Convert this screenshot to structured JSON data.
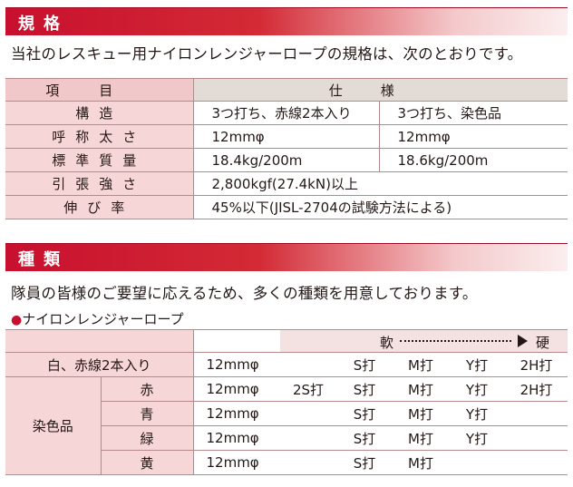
{
  "spec_section": {
    "title": "規格",
    "intro": "当社のレスキュー用ナイロンレンジャーロープの規格は、次のとおりです。",
    "header": {
      "item": "項目",
      "spec": "仕様"
    },
    "rows": [
      {
        "label": "構造",
        "v1": "3つ打ち、赤線2本入り",
        "v2": "3つ打ち、染色品"
      },
      {
        "label": "呼称太さ",
        "v1": "12mmφ",
        "v2": "12mmφ"
      },
      {
        "label": "標準質量",
        "v1": "18.4kg/200m",
        "v2": "18.6kg/200m"
      }
    ],
    "wide_rows": [
      {
        "label": "引張強さ",
        "value": "2,800kgf(27.4kN)以上"
      },
      {
        "label": "伸び率",
        "value": "45%以下(JISL-2704の試験方法による)"
      }
    ]
  },
  "types_section": {
    "title": "種類",
    "intro": "隊員の皆様のご要望に応えるため、多くの種類を用意しております。",
    "bullet_dot": "●",
    "product": "ナイロンレンジャーロープ",
    "scale_soft": "軟",
    "scale_hard": "硬",
    "white_row": {
      "label": "白、赤線2本入り",
      "size": "12mmφ",
      "grades": [
        "",
        "S打",
        "M打",
        "Y打",
        "2H打"
      ]
    },
    "dyed_label": "染色品",
    "dyed_rows": [
      {
        "color": "赤",
        "size": "12mmφ",
        "grades": [
          "2S打",
          "S打",
          "M打",
          "Y打",
          "2H打"
        ]
      },
      {
        "color": "青",
        "size": "12mmφ",
        "grades": [
          "",
          "S打",
          "M打",
          "Y打",
          ""
        ]
      },
      {
        "color": "緑",
        "size": "12mmφ",
        "grades": [
          "",
          "S打",
          "M打",
          "Y打",
          ""
        ]
      },
      {
        "color": "黄",
        "size": "12mmφ",
        "grades": [
          "",
          "S打",
          "M打",
          "",
          ""
        ]
      }
    ]
  },
  "colors": {
    "accent": "#c8102e",
    "label_bg": "#f6d6d6",
    "header_bg": "#e3dcd6"
  }
}
